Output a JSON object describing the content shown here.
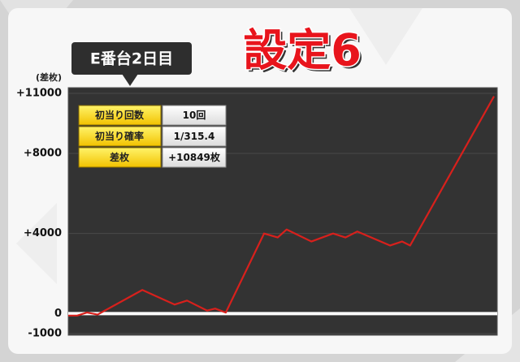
{
  "chart_data": {
    "type": "line",
    "title": "設定6",
    "subtitle": "E番台2日目",
    "ylabel": "(差枚)",
    "x": [
      0,
      2.1,
      4.4,
      6.9,
      17.4,
      25,
      27.9,
      32.6,
      34.5,
      37,
      46,
      49.2,
      51.3,
      57.1,
      62.2,
      65.1,
      67.9,
      75.6,
      78.4,
      80.3,
      100
    ],
    "values": [
      -100,
      -100,
      50,
      -50,
      1180,
      450,
      650,
      150,
      250,
      50,
      4000,
      3800,
      4200,
      3600,
      4000,
      3800,
      4100,
      3400,
      3600,
      3400,
      10849
    ],
    "color": "#d8201c",
    "xlim": [
      0,
      100
    ],
    "ylim": [
      -1000,
      11000
    ],
    "yticks": [
      -1000,
      0,
      {
        "value": 4000,
        "label": "+4000"
      },
      {
        "value": 8000,
        "label": "+8000"
      },
      {
        "value": 11000,
        "label": "+11000"
      }
    ],
    "grid": true
  },
  "stats": {
    "rows": [
      [
        "初当り回数",
        "10回"
      ],
      [
        "初当り確率",
        "1/315.4"
      ],
      [
        "差枚",
        "+10849枚"
      ]
    ]
  }
}
